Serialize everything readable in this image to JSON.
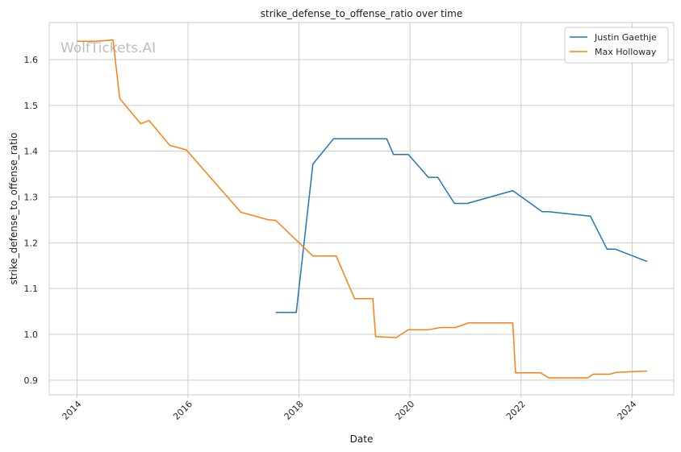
{
  "chart_data": {
    "type": "line",
    "title": "strike_defense_to_offense_ratio over time",
    "xlabel": "Date",
    "ylabel": "strike_defense_to_offense_ratio",
    "watermark": "WolfTickets.AI",
    "xlim": [
      2013.5,
      2024.75
    ],
    "ylim": [
      0.868,
      1.681
    ],
    "x_ticks": [
      2014,
      2016,
      2018,
      2020,
      2022,
      2024
    ],
    "x_tick_labels": [
      "2014",
      "2016",
      "2018",
      "2020",
      "2022",
      "2024"
    ],
    "y_ticks": [
      0.9,
      1.0,
      1.1,
      1.2,
      1.3,
      1.4,
      1.5,
      1.6
    ],
    "y_tick_labels": [
      "0.9",
      "1.0",
      "1.1",
      "1.2",
      "1.3",
      "1.4",
      "1.5",
      "1.6"
    ],
    "grid": true,
    "legend_position": "top-right",
    "series": [
      {
        "name": "Justin Gaethje",
        "color": "#1f77b4",
        "points": [
          [
            2017.58,
            1.048
          ],
          [
            2017.95,
            1.048
          ],
          [
            2018.25,
            1.372
          ],
          [
            2018.62,
            1.427
          ],
          [
            2019.58,
            1.427
          ],
          [
            2019.7,
            1.393
          ],
          [
            2019.97,
            1.393
          ],
          [
            2020.33,
            1.343
          ],
          [
            2020.5,
            1.343
          ],
          [
            2020.8,
            1.286
          ],
          [
            2021.03,
            1.286
          ],
          [
            2021.85,
            1.314
          ],
          [
            2022.38,
            1.268
          ],
          [
            2022.5,
            1.268
          ],
          [
            2023.25,
            1.258
          ],
          [
            2023.55,
            1.186
          ],
          [
            2023.7,
            1.186
          ],
          [
            2024.27,
            1.159
          ]
        ]
      },
      {
        "name": "Max Holloway",
        "color": "#ff7f0e",
        "points": [
          [
            2014.0,
            1.64
          ],
          [
            2014.33,
            1.64
          ],
          [
            2014.65,
            1.643
          ],
          [
            2014.77,
            1.515
          ],
          [
            2015.15,
            1.46
          ],
          [
            2015.3,
            1.467
          ],
          [
            2015.67,
            1.413
          ],
          [
            2015.97,
            1.403
          ],
          [
            2016.95,
            1.267
          ],
          [
            2017.45,
            1.25
          ],
          [
            2017.58,
            1.249
          ],
          [
            2018.25,
            1.171
          ],
          [
            2018.67,
            1.171
          ],
          [
            2019.0,
            1.078
          ],
          [
            2019.33,
            1.078
          ],
          [
            2019.38,
            0.995
          ],
          [
            2019.75,
            0.993
          ],
          [
            2019.97,
            1.01
          ],
          [
            2020.33,
            1.01
          ],
          [
            2020.55,
            1.015
          ],
          [
            2020.82,
            1.015
          ],
          [
            2021.05,
            1.025
          ],
          [
            2021.85,
            1.025
          ],
          [
            2021.9,
            0.916
          ],
          [
            2022.35,
            0.916
          ],
          [
            2022.5,
            0.905
          ],
          [
            2023.2,
            0.905
          ],
          [
            2023.3,
            0.913
          ],
          [
            2023.6,
            0.913
          ],
          [
            2023.72,
            0.917
          ],
          [
            2024.27,
            0.92
          ]
        ]
      }
    ]
  }
}
